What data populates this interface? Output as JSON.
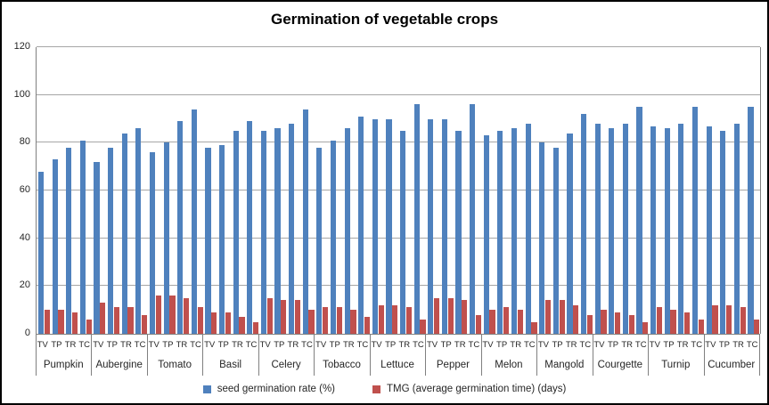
{
  "chart_data": {
    "type": "bar",
    "title": "Germination of vegetable crops",
    "categories": [
      "Pumpkin",
      "Aubergine",
      "Tomato",
      "Basil",
      "Celery",
      "Tobacco",
      "Lettuce",
      "Pepper",
      "Melon",
      "Mangold",
      "Courgette",
      "Turnip",
      "Cucumber"
    ],
    "sub_categories": [
      "TV",
      "TP",
      "TR",
      "TC"
    ],
    "yticks": [
      "0",
      "20",
      "40",
      "60",
      "80",
      "100",
      "120"
    ],
    "ylim": [
      0,
      120
    ],
    "grid": true,
    "legend_position": "bottom",
    "series": [
      {
        "name": "seed germination rate (%)",
        "color": "#4F81BD",
        "values": [
          [
            68,
            73,
            78,
            81
          ],
          [
            72,
            78,
            84,
            86
          ],
          [
            76,
            80,
            89,
            94
          ],
          [
            78,
            79,
            85,
            89
          ],
          [
            85,
            86,
            88,
            94
          ],
          [
            78,
            81,
            86,
            91
          ],
          [
            90,
            90,
            85,
            96
          ],
          [
            90,
            90,
            85,
            96
          ],
          [
            83,
            85,
            86,
            88
          ],
          [
            80,
            78,
            84,
            92
          ],
          [
            88,
            86,
            88,
            95
          ],
          [
            87,
            86,
            88,
            95
          ],
          [
            87,
            85,
            88,
            95
          ]
        ]
      },
      {
        "name": "TMG (average germination time) (days)",
        "color": "#C0504D",
        "values": [
          [
            10,
            10,
            9,
            6
          ],
          [
            13,
            11,
            11,
            8
          ],
          [
            16,
            16,
            15,
            11
          ],
          [
            9,
            9,
            7,
            5
          ],
          [
            15,
            14,
            14,
            10
          ],
          [
            11,
            11,
            10,
            7
          ],
          [
            12,
            12,
            11,
            6
          ],
          [
            15,
            15,
            14,
            8
          ],
          [
            10,
            11,
            10,
            5
          ],
          [
            14,
            14,
            12,
            8
          ],
          [
            10,
            9,
            8,
            5
          ],
          [
            11,
            10,
            9,
            6
          ],
          [
            12,
            12,
            11,
            6
          ]
        ]
      }
    ]
  },
  "styles": {
    "background": "#FFFFFF",
    "frame_border": "#000000",
    "gridline_color": "#A6A6A6",
    "axis_color": "#808080",
    "tick_text_color": "#262626",
    "title_color": "#000000"
  }
}
